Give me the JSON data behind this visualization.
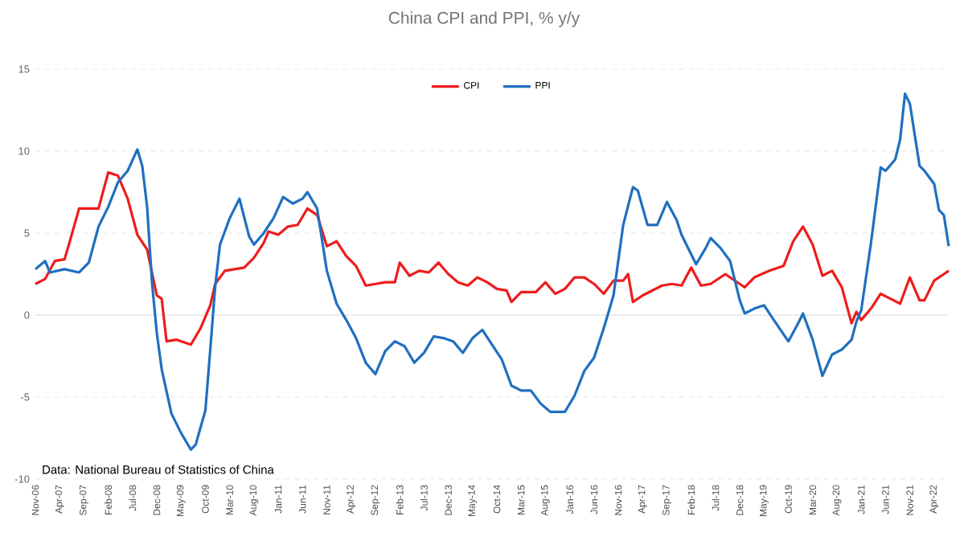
{
  "chart_data": {
    "type": "line",
    "title": "China CPI and PPI, % y/y",
    "xlim": [
      "2006-11",
      "2022-07"
    ],
    "xticks": [
      {
        "value": "2006-11",
        "label": "Nov-06"
      },
      {
        "value": "2007-04",
        "label": "Apr-07"
      },
      {
        "value": "2007-09",
        "label": "Sep-07"
      },
      {
        "value": "2008-02",
        "label": "Feb-08"
      },
      {
        "value": "2008-07",
        "label": "Jul-08"
      },
      {
        "value": "2008-12",
        "label": "Dec-08"
      },
      {
        "value": "2009-05",
        "label": "May-09"
      },
      {
        "value": "2009-10",
        "label": "Oct-09"
      },
      {
        "value": "2010-03",
        "label": "Mar-10"
      },
      {
        "value": "2010-08",
        "label": "Aug-10"
      },
      {
        "value": "2011-01",
        "label": "Jan-11"
      },
      {
        "value": "2011-06",
        "label": "Jun-11"
      },
      {
        "value": "2011-11",
        "label": "Nov-11"
      },
      {
        "value": "2012-04",
        "label": "Apr-12"
      },
      {
        "value": "2012-09",
        "label": "Sep-12"
      },
      {
        "value": "2013-02",
        "label": "Feb-13"
      },
      {
        "value": "2013-07",
        "label": "Jul-13"
      },
      {
        "value": "2013-12",
        "label": "Dec-13"
      },
      {
        "value": "2014-05",
        "label": "May-14"
      },
      {
        "value": "2014-10",
        "label": "Oct-14"
      },
      {
        "value": "2015-03",
        "label": "Mar-15"
      },
      {
        "value": "2015-08",
        "label": "Aug-15"
      },
      {
        "value": "2016-01",
        "label": "Jan-16"
      },
      {
        "value": "2016-06",
        "label": "Jun-16"
      },
      {
        "value": "2016-11",
        "label": "Nov-16"
      },
      {
        "value": "2017-04",
        "label": "Apr-17"
      },
      {
        "value": "2017-09",
        "label": "Sep-17"
      },
      {
        "value": "2018-02",
        "label": "Feb-18"
      },
      {
        "value": "2018-07",
        "label": "Jul-18"
      },
      {
        "value": "2018-12",
        "label": "Dec-18"
      },
      {
        "value": "2019-05",
        "label": "May-19"
      },
      {
        "value": "2019-10",
        "label": "Oct-19"
      },
      {
        "value": "2020-03",
        "label": "Mar-20"
      },
      {
        "value": "2020-08",
        "label": "Aug-20"
      },
      {
        "value": "2021-01",
        "label": "Jan-21"
      },
      {
        "value": "2021-06",
        "label": "Jun-21"
      },
      {
        "value": "2021-11",
        "label": "Nov-21"
      },
      {
        "value": "2022-04",
        "label": "Apr-22"
      }
    ],
    "ylim": [
      -10,
      15
    ],
    "yticks": [
      -10,
      -5,
      0,
      5,
      10,
      15
    ],
    "grid": "y",
    "legend": "top",
    "marker": "none",
    "line_style": "solid",
    "annotations": [
      "Data: National Bureau of Statistics of China"
    ],
    "series": [
      {
        "name": "CPI",
        "color": "#ee1c1c",
        "x": [
          "2006-11",
          "2007-01",
          "2007-03",
          "2007-05",
          "2007-06",
          "2007-08",
          "2007-10",
          "2007-12",
          "2008-02",
          "2008-04",
          "2008-06",
          "2008-08",
          "2008-10",
          "2008-12",
          "2009-01",
          "2009-02",
          "2009-04",
          "2009-07",
          "2009-09",
          "2009-11",
          "2009-12",
          "2010-02",
          "2010-04",
          "2010-06",
          "2010-08",
          "2010-10",
          "2010-11",
          "2011-01",
          "2011-03",
          "2011-05",
          "2011-07",
          "2011-09",
          "2011-11",
          "2012-01",
          "2012-03",
          "2012-05",
          "2012-07",
          "2012-09",
          "2012-11",
          "2013-01",
          "2013-02",
          "2013-04",
          "2013-06",
          "2013-08",
          "2013-10",
          "2013-12",
          "2014-02",
          "2014-04",
          "2014-06",
          "2014-08",
          "2014-10",
          "2014-12",
          "2015-01",
          "2015-03",
          "2015-06",
          "2015-08",
          "2015-10",
          "2015-12",
          "2016-02",
          "2016-04",
          "2016-06",
          "2016-08",
          "2016-10",
          "2016-12",
          "2017-01",
          "2017-02",
          "2017-04",
          "2017-06",
          "2017-08",
          "2017-10",
          "2017-12",
          "2018-02",
          "2018-04",
          "2018-06",
          "2018-09",
          "2018-12",
          "2019-01",
          "2019-03",
          "2019-06",
          "2019-09",
          "2019-11",
          "2020-01",
          "2020-03",
          "2020-05",
          "2020-07",
          "2020-09",
          "2020-11",
          "2020-12",
          "2021-01",
          "2021-03",
          "2021-05",
          "2021-07",
          "2021-09",
          "2021-11",
          "2022-01",
          "2022-02",
          "2022-04",
          "2022-06",
          "2022-07"
        ],
        "values": [
          1.9,
          2.2,
          3.3,
          3.4,
          4.4,
          6.5,
          6.5,
          6.5,
          8.7,
          8.5,
          7.1,
          4.9,
          4.0,
          1.2,
          1.0,
          -1.6,
          -1.5,
          -1.8,
          -0.8,
          0.6,
          1.9,
          2.7,
          2.8,
          2.9,
          3.5,
          4.4,
          5.1,
          4.9,
          5.4,
          5.5,
          6.5,
          6.1,
          4.2,
          4.5,
          3.6,
          3.0,
          1.8,
          1.9,
          2.0,
          2.0,
          3.2,
          2.4,
          2.7,
          2.6,
          3.2,
          2.5,
          2.0,
          1.8,
          2.3,
          2.0,
          1.6,
          1.5,
          0.8,
          1.4,
          1.4,
          2.0,
          1.3,
          1.6,
          2.3,
          2.3,
          1.9,
          1.3,
          2.1,
          2.1,
          2.5,
          0.8,
          1.2,
          1.5,
          1.8,
          1.9,
          1.8,
          2.9,
          1.8,
          1.9,
          2.5,
          1.9,
          1.7,
          2.3,
          2.7,
          3.0,
          4.5,
          5.4,
          4.3,
          2.4,
          2.7,
          1.7,
          -0.5,
          0.2,
          -0.3,
          0.4,
          1.3,
          1.0,
          0.7,
          2.3,
          0.9,
          0.9,
          2.1,
          2.5,
          2.7
        ]
      },
      {
        "name": "PPI",
        "color": "#1f6fc0",
        "x": [
          "2006-11",
          "2007-01",
          "2007-02",
          "2007-05",
          "2007-08",
          "2007-10",
          "2007-12",
          "2008-02",
          "2008-04",
          "2008-06",
          "2008-08",
          "2008-09",
          "2008-10",
          "2008-11",
          "2008-12",
          "2009-01",
          "2009-03",
          "2009-05",
          "2009-07",
          "2009-08",
          "2009-10",
          "2009-11",
          "2009-12",
          "2010-01",
          "2010-03",
          "2010-05",
          "2010-07",
          "2010-08",
          "2010-10",
          "2010-12",
          "2011-02",
          "2011-04",
          "2011-06",
          "2011-07",
          "2011-09",
          "2011-11",
          "2012-01",
          "2012-03",
          "2012-05",
          "2012-07",
          "2012-09",
          "2012-11",
          "2013-01",
          "2013-03",
          "2013-05",
          "2013-07",
          "2013-09",
          "2013-11",
          "2014-01",
          "2014-03",
          "2014-05",
          "2014-07",
          "2014-09",
          "2014-11",
          "2015-01",
          "2015-03",
          "2015-05",
          "2015-07",
          "2015-09",
          "2015-12",
          "2016-02",
          "2016-04",
          "2016-06",
          "2016-08",
          "2016-10",
          "2016-12",
          "2017-02",
          "2017-03",
          "2017-05",
          "2017-07",
          "2017-09",
          "2017-11",
          "2017-12",
          "2018-02",
          "2018-03",
          "2018-05",
          "2018-06",
          "2018-08",
          "2018-10",
          "2018-12",
          "2019-01",
          "2019-03",
          "2019-05",
          "2019-07",
          "2019-10",
          "2019-12",
          "2020-01",
          "2020-03",
          "2020-05",
          "2020-07",
          "2020-09",
          "2020-11",
          "2020-12",
          "2021-01",
          "2021-03",
          "2021-05",
          "2021-06",
          "2021-08",
          "2021-09",
          "2021-10",
          "2021-11",
          "2022-01",
          "2022-02",
          "2022-04",
          "2022-05",
          "2022-06",
          "2022-07"
        ],
        "values": [
          2.8,
          3.3,
          2.6,
          2.8,
          2.6,
          3.2,
          5.4,
          6.6,
          8.1,
          8.8,
          10.1,
          9.1,
          6.6,
          2.0,
          -1.1,
          -3.3,
          -6.0,
          -7.2,
          -8.2,
          -7.9,
          -5.8,
          -2.1,
          1.7,
          4.3,
          5.9,
          7.1,
          4.8,
          4.3,
          5.0,
          5.9,
          7.2,
          6.8,
          7.1,
          7.5,
          6.5,
          2.7,
          0.7,
          -0.3,
          -1.4,
          -2.9,
          -3.6,
          -2.2,
          -1.6,
          -1.9,
          -2.9,
          -2.3,
          -1.3,
          -1.4,
          -1.6,
          -2.3,
          -1.4,
          -0.9,
          -1.8,
          -2.7,
          -4.3,
          -4.6,
          -4.6,
          -5.4,
          -5.9,
          -5.9,
          -4.9,
          -3.4,
          -2.6,
          -0.8,
          1.2,
          5.5,
          7.8,
          7.6,
          5.5,
          5.5,
          6.9,
          5.8,
          4.9,
          3.7,
          3.1,
          4.1,
          4.7,
          4.1,
          3.3,
          0.9,
          0.1,
          0.4,
          0.6,
          -0.3,
          -1.6,
          -0.5,
          0.1,
          -1.5,
          -3.7,
          -2.4,
          -2.1,
          -1.5,
          -0.4,
          0.3,
          4.4,
          9.0,
          8.8,
          9.5,
          10.7,
          13.5,
          12.9,
          9.1,
          8.8,
          8.0,
          6.4,
          6.1,
          4.2
        ]
      }
    ]
  }
}
